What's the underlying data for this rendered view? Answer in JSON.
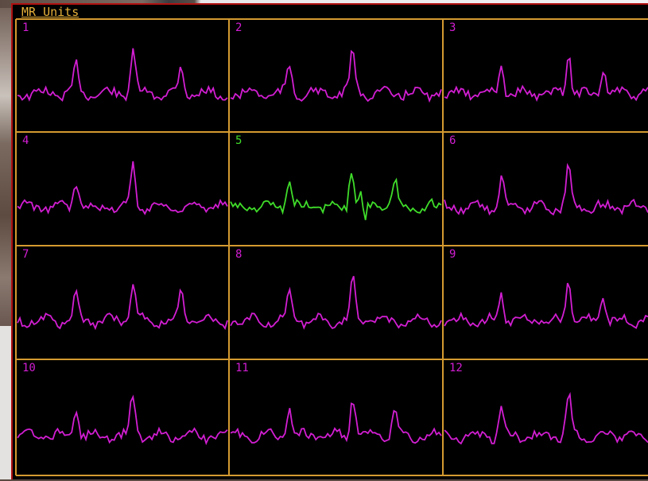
{
  "display": {
    "title": "MR Units",
    "grid_color": "#d49a30",
    "trace_color_default": "#d21ed2",
    "trace_color_highlight": "#3fdc2a"
  },
  "panels": [
    {
      "label": "1",
      "highlighted": false
    },
    {
      "label": "2",
      "highlighted": false
    },
    {
      "label": "3",
      "highlighted": false
    },
    {
      "label": "4",
      "highlighted": false
    },
    {
      "label": "5",
      "highlighted": true
    },
    {
      "label": "6",
      "highlighted": false
    },
    {
      "label": "7",
      "highlighted": false
    },
    {
      "label": "8",
      "highlighted": false
    },
    {
      "label": "9",
      "highlighted": false
    },
    {
      "label": "10",
      "highlighted": false
    },
    {
      "label": "11",
      "highlighted": false
    },
    {
      "label": "12",
      "highlighted": false
    }
  ]
}
